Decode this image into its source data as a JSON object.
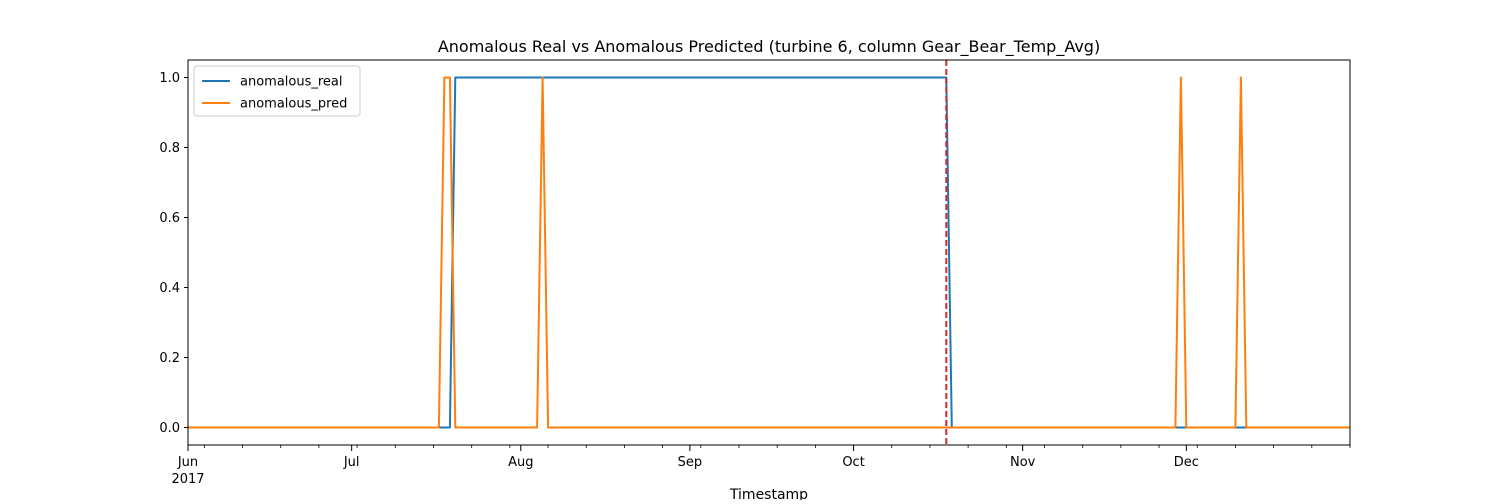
{
  "chart_data": {
    "type": "line",
    "title": "Anomalous Real vs Anomalous Predicted (turbine 6, column Gear_Bear_Temp_Avg)",
    "xlabel": "Timestamp",
    "ylabel": "",
    "xlim": [
      "2017-06-01",
      "2017-12-31"
    ],
    "ylim": [
      -0.05,
      1.05
    ],
    "grid": false,
    "legend_position": "upper-left",
    "x_ticks": [
      {
        "date": "2017-06-01",
        "label": "Jun",
        "sublabel": "2017"
      },
      {
        "date": "2017-07-01",
        "label": "Jul",
        "sublabel": ""
      },
      {
        "date": "2017-08-01",
        "label": "Aug",
        "sublabel": ""
      },
      {
        "date": "2017-09-01",
        "label": "Sep",
        "sublabel": ""
      },
      {
        "date": "2017-10-01",
        "label": "Oct",
        "sublabel": ""
      },
      {
        "date": "2017-11-01",
        "label": "Nov",
        "sublabel": ""
      },
      {
        "date": "2017-12-01",
        "label": "Dec",
        "sublabel": ""
      }
    ],
    "y_ticks": [
      {
        "value": 0.0,
        "label": "0.0"
      },
      {
        "value": 0.2,
        "label": "0.2"
      },
      {
        "value": 0.4,
        "label": "0.4"
      },
      {
        "value": 0.6,
        "label": "0.6"
      },
      {
        "value": 0.8,
        "label": "0.8"
      },
      {
        "value": 1.0,
        "label": "1.0"
      }
    ],
    "vline": {
      "date": "2017-10-18",
      "color": "#d62728",
      "style": "dashed"
    },
    "series": [
      {
        "name": "anomalous_real",
        "color": "#1f77b4",
        "points": [
          [
            "2017-06-01",
            0
          ],
          [
            "2017-07-19",
            0
          ],
          [
            "2017-07-20",
            1
          ],
          [
            "2017-10-18",
            1
          ],
          [
            "2017-10-19",
            0
          ],
          [
            "2017-12-31",
            0
          ]
        ]
      },
      {
        "name": "anomalous_pred",
        "color": "#ff7f0e",
        "points": [
          [
            "2017-06-01",
            0
          ],
          [
            "2017-07-17",
            0
          ],
          [
            "2017-07-18",
            1
          ],
          [
            "2017-07-19",
            1
          ],
          [
            "2017-07-20",
            0
          ],
          [
            "2017-08-04",
            0
          ],
          [
            "2017-08-05",
            1
          ],
          [
            "2017-08-06",
            0
          ],
          [
            "2017-11-29",
            0
          ],
          [
            "2017-11-30",
            1
          ],
          [
            "2017-12-01",
            0
          ],
          [
            "2017-12-10",
            0
          ],
          [
            "2017-12-11",
            1
          ],
          [
            "2017-12-12",
            0
          ],
          [
            "2017-12-31",
            0
          ]
        ]
      }
    ]
  }
}
